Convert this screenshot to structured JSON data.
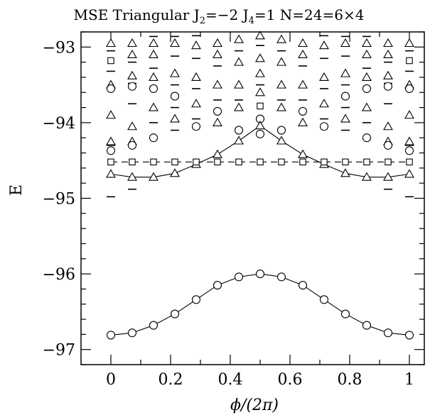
{
  "chart_data": {
    "type": "scatter",
    "title": "MSE Triangular J₂=−2 J₄=1 N=24=6×4",
    "title_parts": {
      "prefix": "MSE Triangular J",
      "sub1": "2",
      "mid1": "=−2 J",
      "sub2": "4",
      "mid2": "=1 N=24=6×4"
    },
    "xlabel": "ϕ/(2π)",
    "ylabel": "E",
    "xlim": [
      -0.1,
      1.05
    ],
    "ylim": [
      -97.2,
      -92.8
    ],
    "xticks": [
      {
        "v": 0,
        "label": "0"
      },
      {
        "v": 0.2,
        "label": "0.2"
      },
      {
        "v": 0.4,
        "label": "0.4"
      },
      {
        "v": 0.6,
        "label": "0.6"
      },
      {
        "v": 0.8,
        "label": "0.8"
      },
      {
        "v": 1,
        "label": "1"
      }
    ],
    "yticks": [
      {
        "v": -97,
        "label": "−97"
      },
      {
        "v": -96,
        "label": "−96"
      },
      {
        "v": -95,
        "label": "−95"
      },
      {
        "v": -94,
        "label": "−94"
      },
      {
        "v": -93,
        "label": "−93"
      }
    ],
    "x": [
      0,
      0.0714,
      0.1429,
      0.2143,
      0.2857,
      0.3571,
      0.4286,
      0.5,
      0.5714,
      0.6429,
      0.7143,
      0.7857,
      0.8571,
      0.9286,
      1
    ],
    "series": [
      {
        "marker": "circle",
        "line": "solid",
        "values": [
          -96.81,
          -96.78,
          -96.68,
          -96.53,
          -96.34,
          -96.15,
          -96.04,
          -96.0,
          -96.04,
          -96.15,
          -96.34,
          -96.53,
          -96.68,
          -96.78,
          -96.81
        ]
      },
      {
        "marker": "triangle",
        "line": "solid",
        "values": [
          -94.68,
          -94.72,
          -94.72,
          -94.67,
          -94.55,
          -94.42,
          -94.24,
          -94.04,
          -94.24,
          -94.42,
          -94.55,
          -94.67,
          -94.72,
          -94.72,
          -94.68
        ]
      },
      {
        "marker": "square",
        "line": "dashed",
        "values": [
          -94.52,
          -94.52,
          -94.52,
          -94.52,
          -94.52,
          -94.52,
          -94.52,
          -94.52,
          -94.52,
          -94.52,
          -94.52,
          -94.52,
          -94.52,
          -94.52,
          -94.52
        ]
      }
    ],
    "excited_points": [
      [
        0,
        -92.95,
        "triangle"
      ],
      [
        0,
        -93.05,
        "dash"
      ],
      [
        0,
        -93.18,
        "square"
      ],
      [
        0,
        -93.32,
        "dash"
      ],
      [
        0,
        -93.5,
        "triangle"
      ],
      [
        0,
        -93.55,
        "circle"
      ],
      [
        0,
        -93.9,
        "triangle"
      ],
      [
        0,
        -94.25,
        "triangle"
      ],
      [
        0,
        -94.3,
        "dash"
      ],
      [
        0,
        -94.37,
        "circle"
      ],
      [
        0,
        -94.98,
        "dash"
      ],
      [
        0.0714,
        -92.95,
        "triangle"
      ],
      [
        0.0714,
        -93.1,
        "triangle"
      ],
      [
        0.0714,
        -93.2,
        "dash"
      ],
      [
        0.0714,
        -93.38,
        "triangle"
      ],
      [
        0.0714,
        -93.48,
        "dash"
      ],
      [
        0.0714,
        -93.52,
        "circle"
      ],
      [
        0.0714,
        -93.75,
        "dash"
      ],
      [
        0.0714,
        -94.05,
        "triangle"
      ],
      [
        0.0714,
        -94.25,
        "triangle"
      ],
      [
        0.0714,
        -94.3,
        "circle"
      ],
      [
        0.0714,
        -94.88,
        "dash"
      ],
      [
        0.1429,
        -92.86,
        "dash"
      ],
      [
        0.1429,
        -92.95,
        "triangle"
      ],
      [
        0.1429,
        -93.1,
        "triangle"
      ],
      [
        0.1429,
        -93.28,
        "dash"
      ],
      [
        0.1429,
        -93.4,
        "triangle"
      ],
      [
        0.1429,
        -93.55,
        "circle"
      ],
      [
        0.1429,
        -93.8,
        "triangle"
      ],
      [
        0.1429,
        -94.0,
        "dash"
      ],
      [
        0.1429,
        -94.2,
        "circle"
      ],
      [
        0.2143,
        -92.86,
        "dash"
      ],
      [
        0.2143,
        -92.95,
        "triangle"
      ],
      [
        0.2143,
        -93.12,
        "dash"
      ],
      [
        0.2143,
        -93.35,
        "triangle"
      ],
      [
        0.2143,
        -93.5,
        "dash"
      ],
      [
        0.2143,
        -93.65,
        "circle"
      ],
      [
        0.2143,
        -93.8,
        "dash"
      ],
      [
        0.2143,
        -93.95,
        "triangle"
      ],
      [
        0.2143,
        -94.1,
        "dash"
      ],
      [
        0.2857,
        -92.85,
        "dash"
      ],
      [
        0.2857,
        -92.98,
        "triangle"
      ],
      [
        0.2857,
        -93.15,
        "dash"
      ],
      [
        0.2857,
        -93.4,
        "triangle"
      ],
      [
        0.2857,
        -93.55,
        "dash"
      ],
      [
        0.2857,
        -93.75,
        "triangle"
      ],
      [
        0.2857,
        -93.95,
        "dash"
      ],
      [
        0.2857,
        -94.05,
        "circle"
      ],
      [
        0.3571,
        -92.95,
        "triangle"
      ],
      [
        0.3571,
        -93.1,
        "triangle"
      ],
      [
        0.3571,
        -93.25,
        "dash"
      ],
      [
        0.3571,
        -93.5,
        "triangle"
      ],
      [
        0.3571,
        -93.7,
        "dash"
      ],
      [
        0.3571,
        -93.85,
        "circle"
      ],
      [
        0.3571,
        -94.0,
        "triangle"
      ],
      [
        0.4286,
        -92.9,
        "triangle"
      ],
      [
        0.4286,
        -93.05,
        "dash"
      ],
      [
        0.4286,
        -93.2,
        "triangle"
      ],
      [
        0.4286,
        -93.5,
        "triangle"
      ],
      [
        0.4286,
        -93.7,
        "dash"
      ],
      [
        0.4286,
        -93.8,
        "triangle"
      ],
      [
        0.4286,
        -94.1,
        "circle"
      ],
      [
        0.5,
        -92.85,
        "triangle"
      ],
      [
        0.5,
        -92.98,
        "dash"
      ],
      [
        0.5,
        -93.15,
        "triangle"
      ],
      [
        0.5,
        -93.35,
        "triangle"
      ],
      [
        0.5,
        -93.5,
        "dash"
      ],
      [
        0.5,
        -93.6,
        "triangle"
      ],
      [
        0.5,
        -93.78,
        "square"
      ],
      [
        0.5,
        -93.95,
        "circle"
      ],
      [
        0.5,
        -94.15,
        "circle"
      ],
      [
        0.5714,
        -92.9,
        "triangle"
      ],
      [
        0.5714,
        -93.05,
        "dash"
      ],
      [
        0.5714,
        -93.2,
        "triangle"
      ],
      [
        0.5714,
        -93.5,
        "triangle"
      ],
      [
        0.5714,
        -93.7,
        "dash"
      ],
      [
        0.5714,
        -93.8,
        "triangle"
      ],
      [
        0.5714,
        -94.1,
        "circle"
      ],
      [
        0.6429,
        -92.95,
        "triangle"
      ],
      [
        0.6429,
        -93.1,
        "triangle"
      ],
      [
        0.6429,
        -93.25,
        "dash"
      ],
      [
        0.6429,
        -93.5,
        "triangle"
      ],
      [
        0.6429,
        -93.7,
        "dash"
      ],
      [
        0.6429,
        -93.85,
        "circle"
      ],
      [
        0.6429,
        -94.0,
        "triangle"
      ],
      [
        0.7143,
        -92.85,
        "dash"
      ],
      [
        0.7143,
        -92.98,
        "triangle"
      ],
      [
        0.7143,
        -93.15,
        "dash"
      ],
      [
        0.7143,
        -93.4,
        "triangle"
      ],
      [
        0.7143,
        -93.55,
        "dash"
      ],
      [
        0.7143,
        -93.75,
        "triangle"
      ],
      [
        0.7143,
        -93.95,
        "dash"
      ],
      [
        0.7143,
        -94.05,
        "circle"
      ],
      [
        0.7857,
        -92.86,
        "dash"
      ],
      [
        0.7857,
        -92.95,
        "triangle"
      ],
      [
        0.7857,
        -93.12,
        "dash"
      ],
      [
        0.7857,
        -93.35,
        "triangle"
      ],
      [
        0.7857,
        -93.5,
        "dash"
      ],
      [
        0.7857,
        -93.65,
        "circle"
      ],
      [
        0.7857,
        -93.8,
        "dash"
      ],
      [
        0.7857,
        -93.95,
        "triangle"
      ],
      [
        0.7857,
        -94.1,
        "dash"
      ],
      [
        0.8571,
        -92.86,
        "dash"
      ],
      [
        0.8571,
        -92.95,
        "triangle"
      ],
      [
        0.8571,
        -93.1,
        "triangle"
      ],
      [
        0.8571,
        -93.28,
        "dash"
      ],
      [
        0.8571,
        -93.4,
        "triangle"
      ],
      [
        0.8571,
        -93.55,
        "circle"
      ],
      [
        0.8571,
        -93.8,
        "triangle"
      ],
      [
        0.8571,
        -94.0,
        "dash"
      ],
      [
        0.8571,
        -94.2,
        "circle"
      ],
      [
        0.9286,
        -92.95,
        "triangle"
      ],
      [
        0.9286,
        -93.1,
        "triangle"
      ],
      [
        0.9286,
        -93.2,
        "dash"
      ],
      [
        0.9286,
        -93.38,
        "triangle"
      ],
      [
        0.9286,
        -93.48,
        "dash"
      ],
      [
        0.9286,
        -93.52,
        "circle"
      ],
      [
        0.9286,
        -93.75,
        "dash"
      ],
      [
        0.9286,
        -94.05,
        "triangle"
      ],
      [
        0.9286,
        -94.25,
        "triangle"
      ],
      [
        0.9286,
        -94.3,
        "circle"
      ],
      [
        0.9286,
        -94.88,
        "dash"
      ],
      [
        1,
        -92.95,
        "triangle"
      ],
      [
        1,
        -93.05,
        "dash"
      ],
      [
        1,
        -93.18,
        "square"
      ],
      [
        1,
        -93.32,
        "dash"
      ],
      [
        1,
        -93.5,
        "triangle"
      ],
      [
        1,
        -93.55,
        "circle"
      ],
      [
        1,
        -93.9,
        "triangle"
      ],
      [
        1,
        -94.25,
        "triangle"
      ],
      [
        1,
        -94.3,
        "dash"
      ],
      [
        1,
        -94.37,
        "circle"
      ],
      [
        1,
        -94.98,
        "dash"
      ]
    ]
  }
}
